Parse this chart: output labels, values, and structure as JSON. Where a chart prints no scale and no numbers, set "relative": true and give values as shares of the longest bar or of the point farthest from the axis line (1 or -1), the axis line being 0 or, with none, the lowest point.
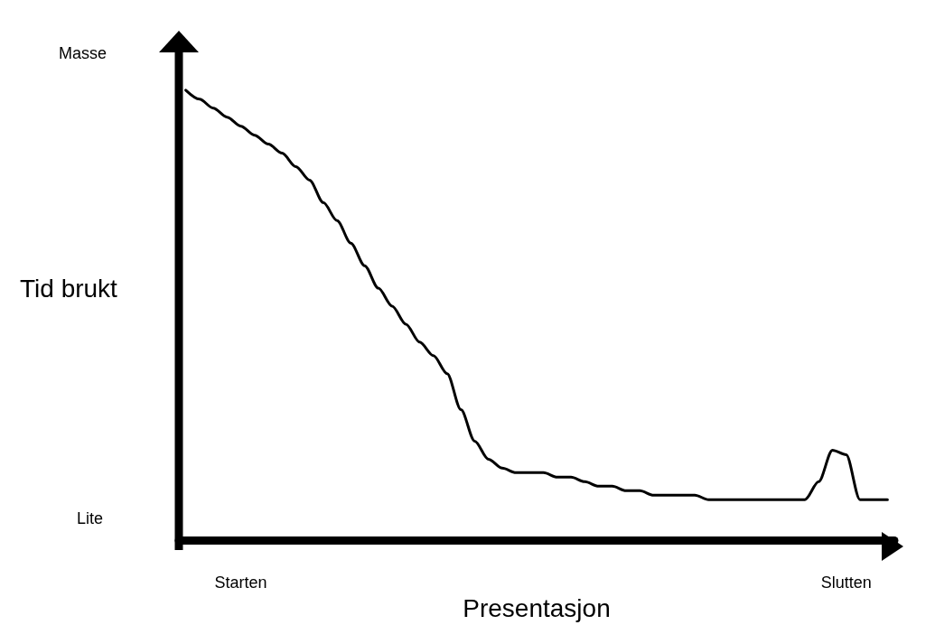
{
  "chart_data": {
    "type": "line",
    "relative": true,
    "xlabel": "Presentasjon",
    "ylabel": "Tid brukt",
    "annotations": [
      "Masse",
      "Lite"
    ],
    "categories": [
      null,
      null,
      null,
      null,
      "Starten",
      null,
      null,
      null,
      null,
      null,
      null,
      null,
      null,
      null,
      null,
      null,
      null,
      null,
      null,
      null,
      null,
      null,
      null,
      null,
      null,
      null,
      null,
      null,
      null,
      null,
      null,
      null,
      null,
      null,
      null,
      null,
      null,
      null,
      null,
      null,
      null,
      null,
      null,
      null,
      null,
      null,
      null,
      null,
      "Slutten",
      null,
      null,
      null
    ],
    "series": [
      {
        "color": "#000000",
        "values": [
          1.0,
          0.98,
          0.96,
          0.94,
          0.92,
          0.9,
          0.88,
          0.86,
          0.83,
          0.8,
          0.75,
          0.71,
          0.66,
          0.61,
          0.56,
          0.52,
          0.48,
          0.44,
          0.41,
          0.37,
          0.29,
          0.22,
          0.18,
          0.16,
          0.15,
          0.15,
          0.15,
          0.14,
          0.14,
          0.13,
          0.12,
          0.12,
          0.11,
          0.11,
          0.1,
          0.1,
          0.1,
          0.1,
          0.09,
          0.09,
          0.09,
          0.09,
          0.09,
          0.09,
          0.09,
          0.09,
          0.13,
          0.2,
          0.19,
          0.09,
          0.09,
          0.09
        ]
      }
    ]
  }
}
